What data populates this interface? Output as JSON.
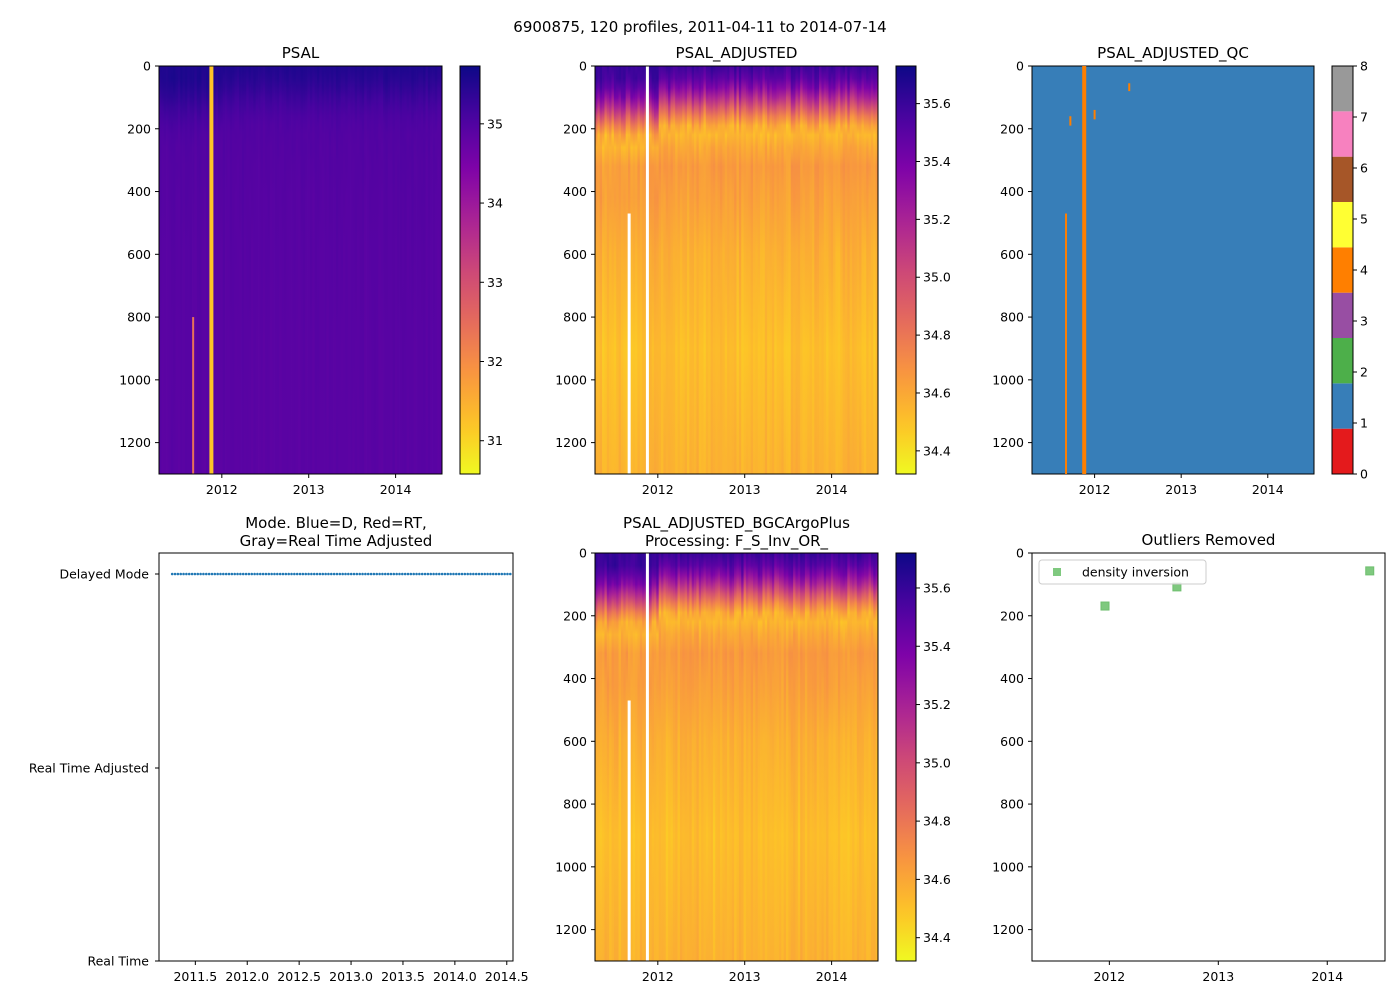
{
  "chart_data": {
    "type": "heatmap",
    "suptitle": "6900875, 120 profiles, 2011-04-11 to 2014-07-14",
    "profiles": 120,
    "time_range": [
      2011.277,
      2014.534
    ],
    "depth_range": [
      0,
      1300
    ],
    "panels": [
      {
        "id": "psal",
        "type": "heatmap",
        "title": "PSAL",
        "colormap": "plasma_r",
        "clim": [
          30.58,
          35.73
        ],
        "colorbar_ticks": [
          "31",
          "32",
          "33",
          "34",
          "35"
        ],
        "colorbar_tick_values": [
          31,
          32,
          33,
          34,
          35
        ],
        "x_ticks": [
          "2012",
          "2013",
          "2014"
        ],
        "x_tick_values": [
          2012,
          2013,
          2014
        ],
        "y_ticks": [
          "0",
          "200",
          "400",
          "600",
          "800",
          "1000",
          "1200"
        ],
        "y_tick_values": [
          0,
          200,
          400,
          600,
          800,
          1000,
          1200
        ],
        "profile_depths": [
          0,
          50,
          100,
          150,
          200,
          300,
          500,
          800,
          1300
        ],
        "mean_profile": [
          35.55,
          35.4,
          35.2,
          35.05,
          34.98,
          34.95,
          34.92,
          34.9,
          34.88
        ],
        "anomalies": [
          {
            "time": 2011.88,
            "from": 0,
            "to": 1300,
            "value": 31.2
          },
          {
            "time": 2011.67,
            "from": 800,
            "to": 1300,
            "value": 32.4
          }
        ]
      },
      {
        "id": "psal_adjusted",
        "type": "heatmap",
        "title": "PSAL_ADJUSTED",
        "colormap": "plasma_r",
        "clim": [
          34.32,
          35.73
        ],
        "colorbar_ticks": [
          "34.4",
          "34.6",
          "34.8",
          "35.0",
          "35.2",
          "35.4",
          "35.6"
        ],
        "colorbar_tick_values": [
          34.4,
          34.6,
          34.8,
          35.0,
          35.2,
          35.4,
          35.6
        ],
        "x_ticks": [
          "2012",
          "2013",
          "2014"
        ],
        "x_tick_values": [
          2012,
          2013,
          2014
        ],
        "y_ticks": [
          "0",
          "200",
          "400",
          "600",
          "800",
          "1000",
          "1200"
        ],
        "y_tick_values": [
          0,
          200,
          400,
          600,
          800,
          1000,
          1200
        ],
        "profile_depths": [
          0,
          50,
          100,
          150,
          200,
          300,
          500,
          800,
          1300
        ],
        "mean_profile": [
          35.6,
          35.45,
          35.15,
          34.8,
          34.52,
          34.66,
          34.6,
          34.5,
          34.56
        ],
        "gaps": [
          {
            "time": 2011.88,
            "from": 0,
            "to": 1300
          },
          {
            "time": 2011.67,
            "from": 470,
            "to": 1300
          }
        ]
      },
      {
        "id": "psal_adjusted_qc",
        "type": "heatmap",
        "title": "PSAL_ADJUSTED_QC",
        "colormap": "Set1 (discrete)",
        "clim": [
          0,
          8
        ],
        "colorbar_ticks": [
          "0",
          "1",
          "2",
          "3",
          "4",
          "5",
          "6",
          "7",
          "8"
        ],
        "qc_colors": [
          "#e41a1c",
          "#377eb8",
          "#4daf4a",
          "#984ea3",
          "#ff7f00",
          "#ffff33",
          "#a65628",
          "#f781bf",
          "#999999"
        ],
        "x_ticks": [
          "2012",
          "2013",
          "2014"
        ],
        "x_tick_values": [
          2012,
          2013,
          2014
        ],
        "y_ticks": [
          "0",
          "200",
          "400",
          "600",
          "800",
          "1000",
          "1200"
        ],
        "y_tick_values": [
          0,
          200,
          400,
          600,
          800,
          1000,
          1200
        ],
        "default_flag": 1,
        "flag4_regions": [
          {
            "time": 2011.88,
            "from": 0,
            "to": 1300
          },
          {
            "time": 2011.67,
            "from": 470,
            "to": 1300
          },
          {
            "time": 2011.72,
            "from": 160,
            "to": 190
          },
          {
            "time": 2012.0,
            "from": 140,
            "to": 170
          },
          {
            "time": 2012.4,
            "from": 55,
            "to": 80
          }
        ]
      },
      {
        "id": "mode",
        "type": "scatter",
        "title": "Mode. Blue=D, Red=RT,\nGray=Real Time Adjusted",
        "title_lines": [
          "Mode. Blue=D, Red=RT,",
          "Gray=Real Time Adjusted"
        ],
        "y_categories": [
          "Real Time",
          "Real Time Adjusted",
          "Delayed Mode"
        ],
        "x_ticks": [
          "2011.5",
          "2012.0",
          "2012.5",
          "2013.0",
          "2013.5",
          "2014.0",
          "2014.5"
        ],
        "x_tick_values": [
          2011.5,
          2012.0,
          2012.5,
          2013.0,
          2013.5,
          2014.0,
          2014.5
        ],
        "xlim": [
          2011.15,
          2014.56
        ],
        "series": [
          {
            "name": "Delayed Mode",
            "color": "#1f77b4",
            "mode": "Delayed Mode",
            "count": 120
          }
        ]
      },
      {
        "id": "psal_adjusted_bgc",
        "type": "heatmap",
        "title_lines": [
          "PSAL_ADJUSTED_BGCArgoPlus",
          "Processing: F_S_Inv_OR_"
        ],
        "colormap": "plasma_r",
        "clim": [
          34.32,
          35.72
        ],
        "colorbar_ticks": [
          "34.4",
          "34.6",
          "34.8",
          "35.0",
          "35.2",
          "35.4",
          "35.6"
        ],
        "colorbar_tick_values": [
          34.4,
          34.6,
          34.8,
          35.0,
          35.2,
          35.4,
          35.6
        ],
        "x_ticks": [
          "2012",
          "2013",
          "2014"
        ],
        "x_tick_values": [
          2012,
          2013,
          2014
        ],
        "y_ticks": [
          "0",
          "200",
          "400",
          "600",
          "800",
          "1000",
          "1200"
        ],
        "y_tick_values": [
          0,
          200,
          400,
          600,
          800,
          1000,
          1200
        ]
      },
      {
        "id": "outliers",
        "type": "scatter",
        "title": "Outliers Removed",
        "x_ticks": [
          "2012",
          "2013",
          "2014"
        ],
        "x_tick_values": [
          2012,
          2013,
          2014
        ],
        "y_ticks": [
          "0",
          "200",
          "400",
          "600",
          "800",
          "1000",
          "1200"
        ],
        "y_tick_values": [
          0,
          200,
          400,
          600,
          800,
          1000,
          1200
        ],
        "xlim": [
          2011.29,
          2014.53
        ],
        "ylim": [
          1300,
          0
        ],
        "legend": "top-left",
        "series": [
          {
            "name": "density inversion",
            "color": "#7fc97f",
            "x": [
              2011.96,
              2012.62,
              2014.39
            ],
            "y": [
              169,
              108,
              57
            ]
          }
        ]
      }
    ]
  }
}
